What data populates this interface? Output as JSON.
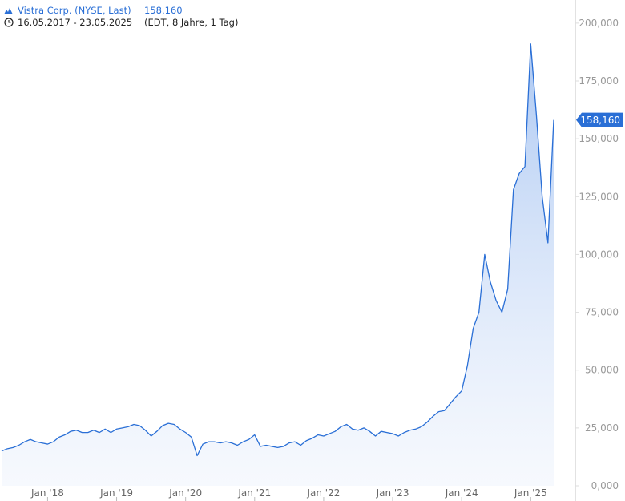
{
  "chart_data": {
    "type": "line",
    "title": "Vistra Corp. (NYSE, Last)",
    "price_label": "158,160",
    "subtitle": "16.05.2017 - 23.05.2025",
    "subtitle_note": "(EDT, 8 Jahre, 1 Tag)",
    "x": [
      "2017-05",
      "2017-06",
      "2017-07",
      "2017-08",
      "2017-09",
      "2017-10",
      "2017-11",
      "2017-12",
      "2018-01",
      "2018-02",
      "2018-03",
      "2018-04",
      "2018-05",
      "2018-06",
      "2018-07",
      "2018-08",
      "2018-09",
      "2018-10",
      "2018-11",
      "2018-12",
      "2019-01",
      "2019-02",
      "2019-03",
      "2019-04",
      "2019-05",
      "2019-06",
      "2019-07",
      "2019-08",
      "2019-09",
      "2019-10",
      "2019-11",
      "2019-12",
      "2020-01",
      "2020-02",
      "2020-03",
      "2020-04",
      "2020-05",
      "2020-06",
      "2020-07",
      "2020-08",
      "2020-09",
      "2020-10",
      "2020-11",
      "2020-12",
      "2021-01",
      "2021-02",
      "2021-03",
      "2021-04",
      "2021-05",
      "2021-06",
      "2021-07",
      "2021-08",
      "2021-09",
      "2021-10",
      "2021-11",
      "2021-12",
      "2022-01",
      "2022-02",
      "2022-03",
      "2022-04",
      "2022-05",
      "2022-06",
      "2022-07",
      "2022-08",
      "2022-09",
      "2022-10",
      "2022-11",
      "2022-12",
      "2023-01",
      "2023-02",
      "2023-03",
      "2023-04",
      "2023-05",
      "2023-06",
      "2023-07",
      "2023-08",
      "2023-09",
      "2023-10",
      "2023-11",
      "2023-12",
      "2024-01",
      "2024-02",
      "2024-03",
      "2024-04",
      "2024-05",
      "2024-06",
      "2024-07",
      "2024-08",
      "2024-09",
      "2024-10",
      "2024-11",
      "2024-12",
      "2025-01",
      "2025-02",
      "2025-03",
      "2025-04",
      "2025-05"
    ],
    "series": [
      {
        "name": "Vistra Corp.",
        "color": "#2a6fd6",
        "values": [
          15000,
          16000,
          16500,
          17500,
          19000,
          20000,
          19000,
          18500,
          18000,
          19000,
          21000,
          22000,
          23500,
          24000,
          23000,
          23000,
          24000,
          23000,
          24500,
          23000,
          24500,
          25000,
          25500,
          26500,
          26000,
          24000,
          21500,
          23500,
          26000,
          27000,
          26500,
          24500,
          23000,
          21000,
          13000,
          18000,
          19000,
          19000,
          18500,
          19000,
          18500,
          17500,
          19000,
          20000,
          22000,
          17000,
          17500,
          17000,
          16500,
          17000,
          18500,
          19000,
          17500,
          19500,
          20500,
          22000,
          21500,
          22500,
          23500,
          25500,
          26500,
          24500,
          24000,
          25000,
          23500,
          21500,
          23500,
          23000,
          22500,
          21500,
          23000,
          24000,
          24500,
          25500,
          27500,
          30000,
          32000,
          32500,
          35500,
          38500,
          41000,
          52000,
          68000,
          75000,
          100000,
          88000,
          80000,
          75000,
          85000,
          128000,
          135000,
          138000,
          191000,
          160000,
          125000,
          105000,
          158160
        ]
      }
    ],
    "xlim": [
      "2017-05",
      "2025-05"
    ],
    "xticks": [
      {
        "value": "2018-01",
        "label": "Jan '18"
      },
      {
        "value": "2019-01",
        "label": "Jan '19"
      },
      {
        "value": "2020-01",
        "label": "Jan '20"
      },
      {
        "value": "2021-01",
        "label": "Jan '21"
      },
      {
        "value": "2022-01",
        "label": "Jan '22"
      },
      {
        "value": "2023-01",
        "label": "Jan '23"
      },
      {
        "value": "2024-01",
        "label": "Jan '24"
      },
      {
        "value": "2025-01",
        "label": "Jan '25"
      }
    ],
    "ylim": [
      0,
      210000
    ],
    "yticks": [
      {
        "value": 0,
        "label": "0,000"
      },
      {
        "value": 25000,
        "label": "25,000"
      },
      {
        "value": 50000,
        "label": "50,000"
      },
      {
        "value": 75000,
        "label": "75,000"
      },
      {
        "value": 100000,
        "label": "100,000"
      },
      {
        "value": 125000,
        "label": "125,000"
      },
      {
        "value": 150000,
        "label": "150,000"
      },
      {
        "value": 175000,
        "label": "175,000"
      },
      {
        "value": 200000,
        "label": "200,000"
      }
    ],
    "grid": false
  }
}
